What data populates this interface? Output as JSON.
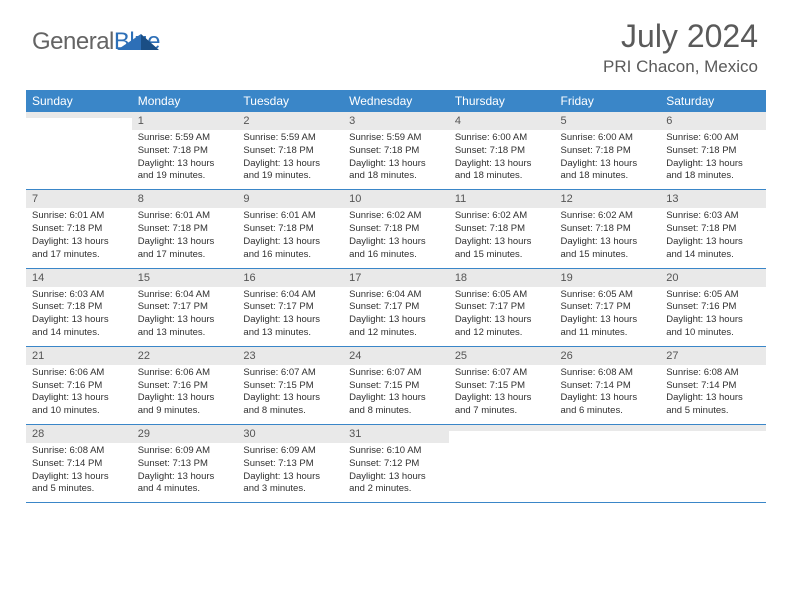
{
  "brand": {
    "name1": "General",
    "name2": "Blue"
  },
  "colors": {
    "header_bg": "#3a86c8",
    "daynum_bg": "#e9e9e9",
    "text": "#303030",
    "muted": "#5a5a5a",
    "row_border": "#3a86c8"
  },
  "title": "July 2024",
  "location": "PRI Chacon, Mexico",
  "weekdays": [
    "Sunday",
    "Monday",
    "Tuesday",
    "Wednesday",
    "Thursday",
    "Friday",
    "Saturday"
  ],
  "weeks": [
    [
      {
        "n": "",
        "sr": "",
        "ss": "",
        "dl1": "",
        "dl2": ""
      },
      {
        "n": "1",
        "sr": "Sunrise: 5:59 AM",
        "ss": "Sunset: 7:18 PM",
        "dl1": "Daylight: 13 hours",
        "dl2": "and 19 minutes."
      },
      {
        "n": "2",
        "sr": "Sunrise: 5:59 AM",
        "ss": "Sunset: 7:18 PM",
        "dl1": "Daylight: 13 hours",
        "dl2": "and 19 minutes."
      },
      {
        "n": "3",
        "sr": "Sunrise: 5:59 AM",
        "ss": "Sunset: 7:18 PM",
        "dl1": "Daylight: 13 hours",
        "dl2": "and 18 minutes."
      },
      {
        "n": "4",
        "sr": "Sunrise: 6:00 AM",
        "ss": "Sunset: 7:18 PM",
        "dl1": "Daylight: 13 hours",
        "dl2": "and 18 minutes."
      },
      {
        "n": "5",
        "sr": "Sunrise: 6:00 AM",
        "ss": "Sunset: 7:18 PM",
        "dl1": "Daylight: 13 hours",
        "dl2": "and 18 minutes."
      },
      {
        "n": "6",
        "sr": "Sunrise: 6:00 AM",
        "ss": "Sunset: 7:18 PM",
        "dl1": "Daylight: 13 hours",
        "dl2": "and 18 minutes."
      }
    ],
    [
      {
        "n": "7",
        "sr": "Sunrise: 6:01 AM",
        "ss": "Sunset: 7:18 PM",
        "dl1": "Daylight: 13 hours",
        "dl2": "and 17 minutes."
      },
      {
        "n": "8",
        "sr": "Sunrise: 6:01 AM",
        "ss": "Sunset: 7:18 PM",
        "dl1": "Daylight: 13 hours",
        "dl2": "and 17 minutes."
      },
      {
        "n": "9",
        "sr": "Sunrise: 6:01 AM",
        "ss": "Sunset: 7:18 PM",
        "dl1": "Daylight: 13 hours",
        "dl2": "and 16 minutes."
      },
      {
        "n": "10",
        "sr": "Sunrise: 6:02 AM",
        "ss": "Sunset: 7:18 PM",
        "dl1": "Daylight: 13 hours",
        "dl2": "and 16 minutes."
      },
      {
        "n": "11",
        "sr": "Sunrise: 6:02 AM",
        "ss": "Sunset: 7:18 PM",
        "dl1": "Daylight: 13 hours",
        "dl2": "and 15 minutes."
      },
      {
        "n": "12",
        "sr": "Sunrise: 6:02 AM",
        "ss": "Sunset: 7:18 PM",
        "dl1": "Daylight: 13 hours",
        "dl2": "and 15 minutes."
      },
      {
        "n": "13",
        "sr": "Sunrise: 6:03 AM",
        "ss": "Sunset: 7:18 PM",
        "dl1": "Daylight: 13 hours",
        "dl2": "and 14 minutes."
      }
    ],
    [
      {
        "n": "14",
        "sr": "Sunrise: 6:03 AM",
        "ss": "Sunset: 7:18 PM",
        "dl1": "Daylight: 13 hours",
        "dl2": "and 14 minutes."
      },
      {
        "n": "15",
        "sr": "Sunrise: 6:04 AM",
        "ss": "Sunset: 7:17 PM",
        "dl1": "Daylight: 13 hours",
        "dl2": "and 13 minutes."
      },
      {
        "n": "16",
        "sr": "Sunrise: 6:04 AM",
        "ss": "Sunset: 7:17 PM",
        "dl1": "Daylight: 13 hours",
        "dl2": "and 13 minutes."
      },
      {
        "n": "17",
        "sr": "Sunrise: 6:04 AM",
        "ss": "Sunset: 7:17 PM",
        "dl1": "Daylight: 13 hours",
        "dl2": "and 12 minutes."
      },
      {
        "n": "18",
        "sr": "Sunrise: 6:05 AM",
        "ss": "Sunset: 7:17 PM",
        "dl1": "Daylight: 13 hours",
        "dl2": "and 12 minutes."
      },
      {
        "n": "19",
        "sr": "Sunrise: 6:05 AM",
        "ss": "Sunset: 7:17 PM",
        "dl1": "Daylight: 13 hours",
        "dl2": "and 11 minutes."
      },
      {
        "n": "20",
        "sr": "Sunrise: 6:05 AM",
        "ss": "Sunset: 7:16 PM",
        "dl1": "Daylight: 13 hours",
        "dl2": "and 10 minutes."
      }
    ],
    [
      {
        "n": "21",
        "sr": "Sunrise: 6:06 AM",
        "ss": "Sunset: 7:16 PM",
        "dl1": "Daylight: 13 hours",
        "dl2": "and 10 minutes."
      },
      {
        "n": "22",
        "sr": "Sunrise: 6:06 AM",
        "ss": "Sunset: 7:16 PM",
        "dl1": "Daylight: 13 hours",
        "dl2": "and 9 minutes."
      },
      {
        "n": "23",
        "sr": "Sunrise: 6:07 AM",
        "ss": "Sunset: 7:15 PM",
        "dl1": "Daylight: 13 hours",
        "dl2": "and 8 minutes."
      },
      {
        "n": "24",
        "sr": "Sunrise: 6:07 AM",
        "ss": "Sunset: 7:15 PM",
        "dl1": "Daylight: 13 hours",
        "dl2": "and 8 minutes."
      },
      {
        "n": "25",
        "sr": "Sunrise: 6:07 AM",
        "ss": "Sunset: 7:15 PM",
        "dl1": "Daylight: 13 hours",
        "dl2": "and 7 minutes."
      },
      {
        "n": "26",
        "sr": "Sunrise: 6:08 AM",
        "ss": "Sunset: 7:14 PM",
        "dl1": "Daylight: 13 hours",
        "dl2": "and 6 minutes."
      },
      {
        "n": "27",
        "sr": "Sunrise: 6:08 AM",
        "ss": "Sunset: 7:14 PM",
        "dl1": "Daylight: 13 hours",
        "dl2": "and 5 minutes."
      }
    ],
    [
      {
        "n": "28",
        "sr": "Sunrise: 6:08 AM",
        "ss": "Sunset: 7:14 PM",
        "dl1": "Daylight: 13 hours",
        "dl2": "and 5 minutes."
      },
      {
        "n": "29",
        "sr": "Sunrise: 6:09 AM",
        "ss": "Sunset: 7:13 PM",
        "dl1": "Daylight: 13 hours",
        "dl2": "and 4 minutes."
      },
      {
        "n": "30",
        "sr": "Sunrise: 6:09 AM",
        "ss": "Sunset: 7:13 PM",
        "dl1": "Daylight: 13 hours",
        "dl2": "and 3 minutes."
      },
      {
        "n": "31",
        "sr": "Sunrise: 6:10 AM",
        "ss": "Sunset: 7:12 PM",
        "dl1": "Daylight: 13 hours",
        "dl2": "and 2 minutes."
      },
      {
        "n": "",
        "sr": "",
        "ss": "",
        "dl1": "",
        "dl2": ""
      },
      {
        "n": "",
        "sr": "",
        "ss": "",
        "dl1": "",
        "dl2": ""
      },
      {
        "n": "",
        "sr": "",
        "ss": "",
        "dl1": "",
        "dl2": ""
      }
    ]
  ]
}
